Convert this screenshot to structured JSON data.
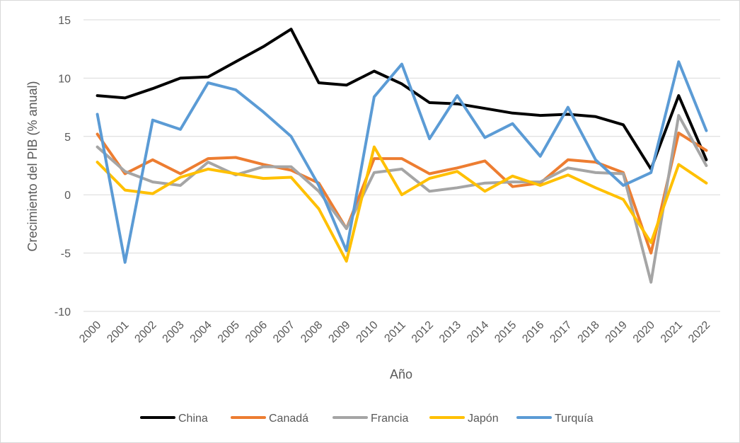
{
  "chart_data": {
    "type": "line",
    "title": "",
    "xlabel": "Año",
    "ylabel": "Crecimiento del PIB (% anual)",
    "ylim": [
      -10,
      15
    ],
    "yticks": [
      -10,
      -5,
      0,
      5,
      10,
      15
    ],
    "grid": true,
    "legend_position": "bottom",
    "categories": [
      "2000",
      "2001",
      "2002",
      "2003",
      "2004",
      "2005",
      "2006",
      "2007",
      "2008",
      "2009",
      "2010",
      "2011",
      "2012",
      "2013",
      "2014",
      "2015",
      "2016",
      "2017",
      "2018",
      "2019",
      "2020",
      "2021",
      "2022"
    ],
    "series": [
      {
        "name": "China",
        "color": "#000000",
        "values": [
          8.5,
          8.3,
          9.1,
          10.0,
          10.1,
          11.4,
          12.7,
          14.2,
          9.6,
          9.4,
          10.6,
          9.5,
          7.9,
          7.8,
          7.4,
          7.0,
          6.8,
          6.9,
          6.7,
          6.0,
          2.2,
          8.5,
          3.0
        ]
      },
      {
        "name": "Canadá",
        "color": "#ED7D31",
        "values": [
          5.2,
          1.8,
          3.0,
          1.8,
          3.1,
          3.2,
          2.6,
          2.1,
          1.0,
          -2.9,
          3.1,
          3.1,
          1.8,
          2.3,
          2.9,
          0.7,
          1.0,
          3.0,
          2.8,
          1.9,
          -5.0,
          5.3,
          3.8
        ]
      },
      {
        "name": "Francia",
        "color": "#A5A5A5",
        "values": [
          4.1,
          2.0,
          1.1,
          0.8,
          2.8,
          1.7,
          2.4,
          2.4,
          0.3,
          -2.9,
          1.9,
          2.2,
          0.3,
          0.6,
          1.0,
          1.1,
          1.1,
          2.3,
          1.9,
          1.8,
          -7.5,
          6.8,
          2.5
        ]
      },
      {
        "name": "Japón",
        "color": "#FFC000",
        "values": [
          2.8,
          0.4,
          0.1,
          1.5,
          2.2,
          1.8,
          1.4,
          1.5,
          -1.2,
          -5.7,
          4.1,
          0.0,
          1.4,
          2.0,
          0.3,
          1.6,
          0.8,
          1.7,
          0.6,
          -0.4,
          -4.1,
          2.6,
          1.0
        ]
      },
      {
        "name": "Turquía",
        "color": "#5B9BD5",
        "values": [
          6.9,
          -5.8,
          6.4,
          5.6,
          9.6,
          9.0,
          7.1,
          5.0,
          0.8,
          -4.8,
          8.4,
          11.2,
          4.8,
          8.5,
          4.9,
          6.1,
          3.3,
          7.5,
          3.0,
          0.8,
          1.9,
          11.4,
          5.5
        ]
      }
    ]
  }
}
